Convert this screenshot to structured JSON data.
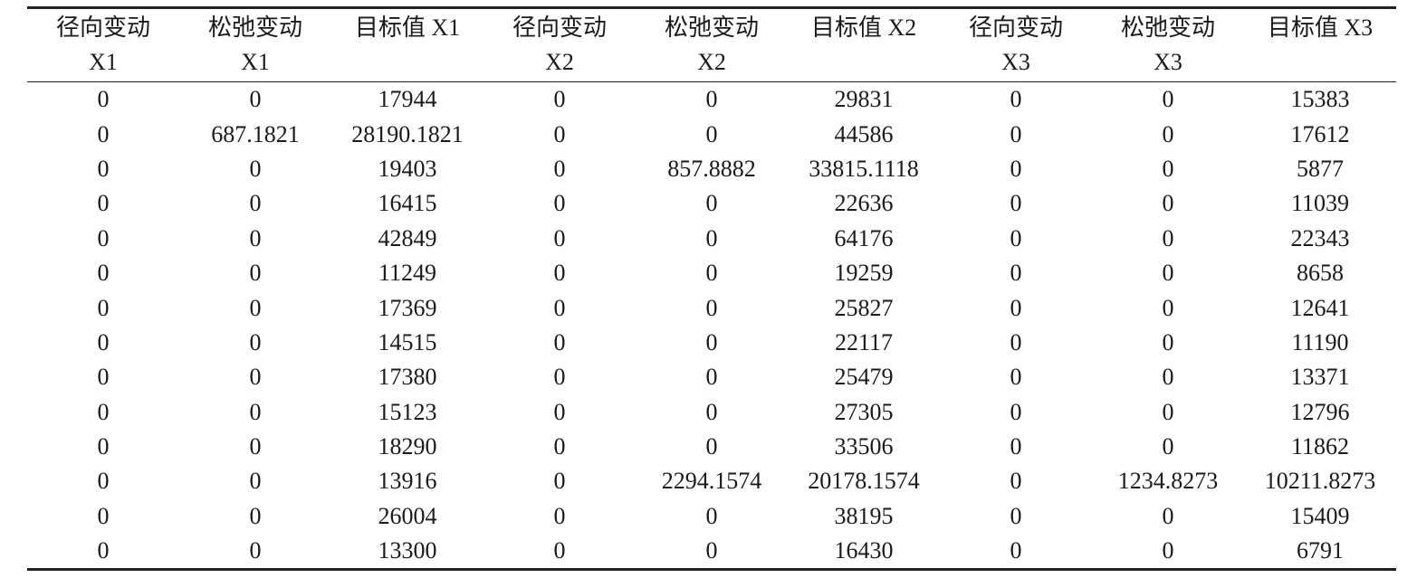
{
  "table": {
    "header": [
      [
        "径向变动",
        "X1"
      ],
      [
        "松弛变动",
        "X1"
      ],
      [
        "目标值 X1"
      ],
      [
        "径向变动",
        "X2"
      ],
      [
        "松弛变动",
        "X2"
      ],
      [
        "目标值 X2"
      ],
      [
        "径向变动",
        "X3"
      ],
      [
        "松弛变动",
        "X3"
      ],
      [
        "目标值 X3"
      ]
    ],
    "rows": [
      [
        "0",
        "0",
        "17944",
        "0",
        "0",
        "29831",
        "0",
        "0",
        "15383"
      ],
      [
        "0",
        "687.1821",
        "28190.1821",
        "0",
        "0",
        "44586",
        "0",
        "0",
        "17612"
      ],
      [
        "0",
        "0",
        "19403",
        "0",
        "857.8882",
        "33815.1118",
        "0",
        "0",
        "5877"
      ],
      [
        "0",
        "0",
        "16415",
        "0",
        "0",
        "22636",
        "0",
        "0",
        "11039"
      ],
      [
        "0",
        "0",
        "42849",
        "0",
        "0",
        "64176",
        "0",
        "0",
        "22343"
      ],
      [
        "0",
        "0",
        "11249",
        "0",
        "0",
        "19259",
        "0",
        "0",
        "8658"
      ],
      [
        "0",
        "0",
        "17369",
        "0",
        "0",
        "25827",
        "0",
        "0",
        "12641"
      ],
      [
        "0",
        "0",
        "14515",
        "0",
        "0",
        "22117",
        "0",
        "0",
        "11190"
      ],
      [
        "0",
        "0",
        "17380",
        "0",
        "0",
        "25479",
        "0",
        "0",
        "13371"
      ],
      [
        "0",
        "0",
        "15123",
        "0",
        "0",
        "27305",
        "0",
        "0",
        "12796"
      ],
      [
        "0",
        "0",
        "18290",
        "0",
        "0",
        "33506",
        "0",
        "0",
        "11862"
      ],
      [
        "0",
        "0",
        "13916",
        "0",
        "2294.1574",
        "20178.1574",
        "0",
        "1234.8273",
        "10211.8273"
      ],
      [
        "0",
        "0",
        "26004",
        "0",
        "0",
        "38195",
        "0",
        "0",
        "15409"
      ],
      [
        "0",
        "0",
        "13300",
        "0",
        "0",
        "16430",
        "0",
        "0",
        "6791"
      ]
    ]
  }
}
